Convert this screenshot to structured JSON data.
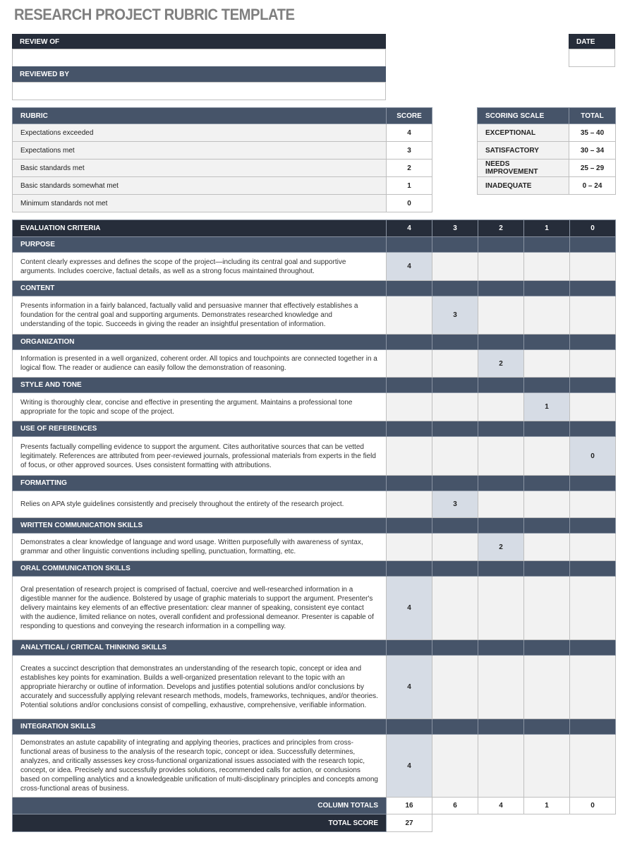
{
  "title": "RESEARCH PROJECT RUBRIC TEMPLATE",
  "review_of": {
    "label": "REVIEW OF",
    "value": ""
  },
  "reviewed_by": {
    "label": "REVIEWED BY",
    "value": ""
  },
  "date": {
    "label": "DATE",
    "value": ""
  },
  "rubric": {
    "headers": [
      "RUBRIC",
      "SCORE"
    ],
    "rows": [
      [
        "Expectations exceeded",
        "4"
      ],
      [
        "Expectations met",
        "3"
      ],
      [
        "Basic standards met",
        "2"
      ],
      [
        "Basic standards somewhat met",
        "1"
      ],
      [
        "Minimum standards not met",
        "0"
      ]
    ]
  },
  "scoring_scale": {
    "headers": [
      "SCORING SCALE",
      "TOTAL"
    ],
    "rows": [
      [
        "EXCEPTIONAL",
        "35 – 40"
      ],
      [
        "SATISFACTORY",
        "30 – 34"
      ],
      [
        "NEEDS IMPROVEMENT",
        "25 – 29"
      ],
      [
        "INADEQUATE",
        "0 – 24"
      ]
    ]
  },
  "evaluation": {
    "headers": [
      "EVALUATION CRITERIA",
      "4",
      "3",
      "2",
      "1",
      "0"
    ],
    "criteria": [
      {
        "name": "PURPOSE",
        "description": "Content clearly expresses and defines the scope of the project—including its central goal and supportive arguments. Includes coercive, factual details, as well as a strong focus maintained throughout.",
        "score": "4"
      },
      {
        "name": "CONTENT",
        "description": "Presents information in a fairly balanced, factually valid and persuasive manner that effectively establishes a foundation for the central goal and supporting arguments. Demonstrates researched knowledge and understanding of the topic. Succeeds in giving the reader an insightful presentation of information.",
        "score": "3"
      },
      {
        "name": "ORGANIZATION",
        "description": "Information is presented in a well organized, coherent order. All topics and touchpoints are connected together in a logical flow. The reader or audience can easily follow the demonstration of reasoning.",
        "score": "2"
      },
      {
        "name": "STYLE AND TONE",
        "description": "Writing is thoroughly clear, concise and effective in presenting the argument. Maintains a professional tone appropriate for the topic and scope of the project.",
        "score": "1"
      },
      {
        "name": "USE OF REFERENCES",
        "description": "Presents factually compelling evidence to support the argument. Cites authoritative sources that can be vetted legitimately. References are attributed from peer-reviewed journals, professional materials from experts in the field of focus, or other approved sources. Uses consistent formatting with attributions.",
        "score": "0"
      },
      {
        "name": "FORMATTING",
        "description": "Relies on APA style guidelines consistently and precisely throughout the entirety of the research project.",
        "score": "3"
      },
      {
        "name": "WRITTEN COMMUNICATION SKILLS",
        "description": "Demonstrates a clear knowledge of language and word usage. Written purposefully with awareness of syntax, grammar and other linguistic conventions including spelling, punctuation, formatting, etc.",
        "score": "2"
      },
      {
        "name": "ORAL COMMUNICATION SKILLS",
        "description": "Oral presentation of research project is comprised of factual, coercive and well-researched information in a digestible manner for the audience. Bolstered by usage of graphic materials to support the argument. Presenter's delivery maintains key elements of an effective presentation: clear manner of speaking, consistent eye contact with the audience, limited reliance on notes, overall confident and professional demeanor. Presenter is capable of responding to questions and conveying the research information in a compelling way.",
        "score": "4"
      },
      {
        "name": "ANALYTICAL / CRITICAL THINKING SKILLS",
        "description": "Creates a succinct description that demonstrates an understanding of the research topic, concept or idea and establishes key points for examination. Builds a well-organized presentation relevant to the topic with an appropriate hierarchy or outline of information. Develops and justifies potential solutions and/or conclusions by accurately and successfully applying relevant research methods, models, frameworks, techniques, and/or theories. Potential solutions and/or conclusions consist of compelling, exhaustive, comprehensive, verifiable information.",
        "score": "4"
      },
      {
        "name": "INTEGRATION SKILLS",
        "description": "Demonstrates an astute capability of integrating and applying theories, practices and principles from cross-functional areas of business to the analysis of the research topic, concept or idea. Successfully determines, analyzes, and critically assesses key cross-functional organizational issues associated with the research topic, concept, or idea. Precisely and successfully provides solutions, recommended calls for action, or conclusions based on compelling  analytics and a knowledgeable unification of multi-disciplinary principles and concepts among cross-functional areas of business.",
        "score": "4"
      }
    ],
    "column_totals_label": "COLUMN TOTALS",
    "column_totals": [
      "16",
      "6",
      "4",
      "1",
      "0"
    ],
    "total_score_label": "TOTAL SCORE",
    "total_score": "27"
  },
  "colors": {
    "dark_header": "#262d3a",
    "section_header": "#465469",
    "selected_cell": "#d6dce5",
    "row_fill": "#f2f2f2"
  }
}
